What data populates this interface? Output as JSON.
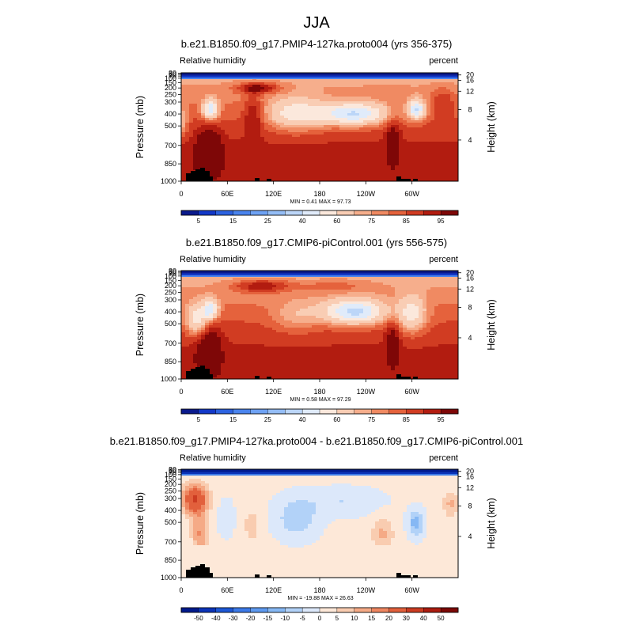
{
  "figure": {
    "title": "JJA"
  },
  "chart_data": [
    {
      "type": "heatmap",
      "title": "b.e21.B1850.f09_g17.PMIP4-127ka.proto004 (yrs 356-375)",
      "left_label": "Relative humidity",
      "right_label": "percent",
      "ylabel": "Pressure (mb)",
      "ylabel_right": "Height (km)",
      "x_ticks": [
        "0",
        "60E",
        "120E",
        "180",
        "120W",
        "60W"
      ],
      "y_ticks": [
        "1000",
        "850",
        "700",
        "500",
        "400",
        "300",
        "250",
        "200",
        "150",
        "100",
        "70",
        "50",
        "30"
      ],
      "height_ticks": [
        "4",
        "8",
        "12",
        "16",
        "20"
      ],
      "stats": "MIN =   0.41   MAX =  97.73",
      "field": "abs_a",
      "colorbar": {
        "labels": [
          "5",
          "15",
          "25",
          "40",
          "60",
          "75",
          "85",
          "95"
        ]
      }
    },
    {
      "type": "heatmap",
      "title": "b.e21.B1850.f09_g17.CMIP6-piControl.001 (yrs 556-575)",
      "left_label": "Relative humidity",
      "right_label": "percent",
      "ylabel": "Pressure (mb)",
      "ylabel_right": "Height (km)",
      "x_ticks": [
        "0",
        "60E",
        "120E",
        "180",
        "120W",
        "60W"
      ],
      "y_ticks": [
        "1000",
        "850",
        "700",
        "500",
        "400",
        "300",
        "250",
        "200",
        "150",
        "100",
        "70",
        "50",
        "30"
      ],
      "height_ticks": [
        "4",
        "8",
        "12",
        "16",
        "20"
      ],
      "stats": "MIN =   0.58   MAX =  97.29",
      "field": "abs_b",
      "colorbar": {
        "labels": [
          "5",
          "15",
          "25",
          "40",
          "60",
          "75",
          "85",
          "95"
        ]
      }
    },
    {
      "type": "heatmap",
      "title": "b.e21.B1850.f09_g17.PMIP4-127ka.proto004 - b.e21.B1850.f09_g17.CMIP6-piControl.001",
      "left_label": "Relative humidity",
      "right_label": "percent",
      "ylabel": "Pressure (mb)",
      "ylabel_right": "Height (km)",
      "x_ticks": [
        "0",
        "60E",
        "120E",
        "180",
        "120W",
        "60W"
      ],
      "y_ticks": [
        "1000",
        "850",
        "700",
        "500",
        "400",
        "300",
        "250",
        "200",
        "150",
        "100",
        "70",
        "50",
        "30"
      ],
      "height_ticks": [
        "4",
        "8",
        "12",
        "16",
        "20"
      ],
      "stats": "MIN = -19.88   MAX =  26.63",
      "field": "diff",
      "colorbar": {
        "labels": [
          "-50",
          "-40",
          "-30",
          "-20",
          "-15",
          "-10",
          "-5",
          "0",
          "5",
          "10",
          "15",
          "20",
          "30",
          "40",
          "50"
        ]
      }
    }
  ],
  "palette": {
    "abs": [
      "#0a1a8c",
      "#1238c8",
      "#2c62e0",
      "#4a84ee",
      "#6ea2f4",
      "#94bdf6",
      "#bcd6f8",
      "#e0ebfa",
      "#fbe8dc",
      "#f9cdb4",
      "#f6ae8c",
      "#f08a62",
      "#e5623c",
      "#d13c22",
      "#b21c10",
      "#7e0707"
    ],
    "diff": [
      "#001a8c",
      "#0c34b8",
      "#1e58d6",
      "#3c7ae8",
      "#5e9af0",
      "#86b8f4",
      "#b2d2f8",
      "#dce8fa",
      "#fde8d8",
      "#f9ccb0",
      "#f5aa86",
      "#ee8660",
      "#e2603c",
      "#cc3c22",
      "#ac1c10",
      "#7c0806"
    ],
    "mountain": "#000000"
  }
}
